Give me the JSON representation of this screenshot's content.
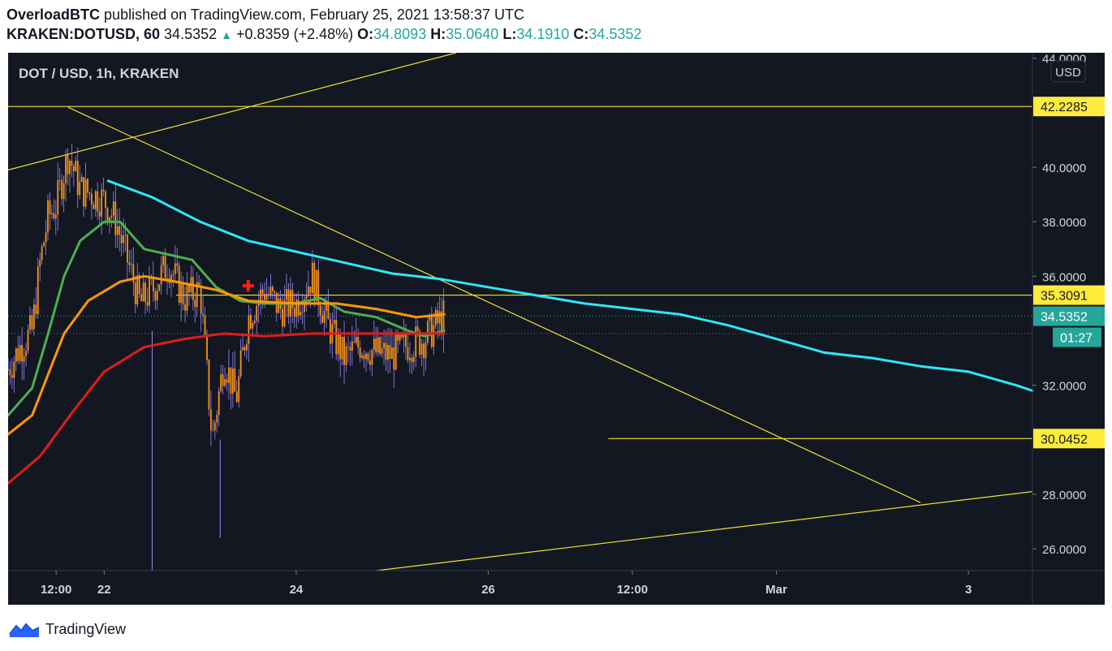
{
  "header": {
    "author": "OverloadBTC",
    "published_text": "published on TradingView.com, February 25, 2021 13:58:37 UTC",
    "symbol": "KRAKEN:DOTUSD, 60",
    "last": "34.5352",
    "change_arrow": "▲",
    "change": "+0.8359 (+2.48%)",
    "o_label": "O:",
    "o": "34.8093",
    "h_label": "H:",
    "h": "35.0640",
    "l_label": "L:",
    "l": "34.1910",
    "c_label": "C:",
    "c": "34.5352"
  },
  "chart_title": "DOT / USD, 1h, KRAKEN",
  "currency_badge": "USD",
  "footer": {
    "brand": "TradingView"
  },
  "colors": {
    "background": "#131722",
    "candle": "#f7931a",
    "wick": "#9b87f5",
    "trendline": "#f0e130",
    "ema_fast": "#4caf50",
    "ema_mid": "#ff9800",
    "ema_slow": "#e01c1c",
    "ema_long": "#2ee8f5",
    "price_badge": "#26a69a",
    "level_badge": "#ffeb3b",
    "axis_text": "#d1d4dc"
  },
  "chart_data": {
    "type": "line",
    "title": "DOT / USD, 1h, KRAKEN",
    "ylim": [
      25.2,
      44.2
    ],
    "x_range": [
      "2021-02-21T00:00",
      "2021-03-03T16:00"
    ],
    "y_ticks": [
      "44.0000",
      "40.0000",
      "38.0000",
      "36.0000",
      "32.0000",
      "28.0000",
      "26.0000"
    ],
    "y_tick_values": [
      44,
      40,
      38,
      36,
      32,
      28,
      26
    ],
    "x_ticks": [
      {
        "label": "12:00",
        "t": "2021-02-21T12:00"
      },
      {
        "label": "22",
        "t": "2021-02-22T00:00"
      },
      {
        "label": "24",
        "t": "2021-02-24T00:00"
      },
      {
        "label": "26",
        "t": "2021-02-26T00:00"
      },
      {
        "label": "12:00",
        "t": "2021-02-27T12:00"
      },
      {
        "label": "Mar",
        "t": "2021-03-01T00:00"
      },
      {
        "label": "3",
        "t": "2021-03-03T00:00"
      }
    ],
    "price_levels": [
      {
        "label": "42.2285",
        "value": 42.2285
      },
      {
        "label": "35.3091",
        "value": 35.3091
      },
      {
        "label": "30.0452",
        "value": 30.0452
      }
    ],
    "current_price": {
      "label": "34.5352",
      "value": 34.5352,
      "countdown": "01:27"
    },
    "close_series": [
      {
        "t": "2021-02-21T00:00",
        "close": 32.6
      },
      {
        "t": "2021-02-21T03:00",
        "close": 33.4
      },
      {
        "t": "2021-02-21T06:00",
        "close": 34.0
      },
      {
        "t": "2021-02-21T08:00",
        "close": 36.5
      },
      {
        "t": "2021-02-21T10:00",
        "close": 38.2
      },
      {
        "t": "2021-02-21T12:00",
        "close": 38.6
      },
      {
        "t": "2021-02-21T15:00",
        "close": 40.5
      },
      {
        "t": "2021-02-21T18:00",
        "close": 39.2
      },
      {
        "t": "2021-02-21T21:00",
        "close": 39.0
      },
      {
        "t": "2021-02-22T00:00",
        "close": 38.8
      },
      {
        "t": "2021-02-22T03:00",
        "close": 38.0
      },
      {
        "t": "2021-02-22T06:00",
        "close": 36.5
      },
      {
        "t": "2021-02-22T09:00",
        "close": 35.0
      },
      {
        "t": "2021-02-22T12:00",
        "close": 35.5
      },
      {
        "t": "2021-02-22T16:00",
        "close": 36.5
      },
      {
        "t": "2021-02-22T20:00",
        "close": 35.2
      },
      {
        "t": "2021-02-23T00:00",
        "close": 35.5
      },
      {
        "t": "2021-02-23T03:00",
        "close": 30.0
      },
      {
        "t": "2021-02-23T06:00",
        "close": 33.0
      },
      {
        "t": "2021-02-23T09:00",
        "close": 31.5
      },
      {
        "t": "2021-02-23T12:00",
        "close": 34.5
      },
      {
        "t": "2021-02-23T16:00",
        "close": 35.5
      },
      {
        "t": "2021-02-23T20:00",
        "close": 34.8
      },
      {
        "t": "2021-02-24T00:00",
        "close": 35.0
      },
      {
        "t": "2021-02-24T04:00",
        "close": 36.0
      },
      {
        "t": "2021-02-24T08:00",
        "close": 34.2
      },
      {
        "t": "2021-02-24T12:00",
        "close": 33.0
      },
      {
        "t": "2021-02-24T16:00",
        "close": 33.5
      },
      {
        "t": "2021-02-24T20:00",
        "close": 33.2
      },
      {
        "t": "2021-02-25T00:00",
        "close": 33.1
      },
      {
        "t": "2021-02-25T04:00",
        "close": 33.5
      },
      {
        "t": "2021-02-25T08:00",
        "close": 33.7
      },
      {
        "t": "2021-02-25T13:00",
        "close": 34.5352
      }
    ],
    "series": [
      {
        "name": "EMA long",
        "color": "#2ee8f5",
        "points": [
          {
            "t": "2021-02-22T01:00",
            "y": 39.5
          },
          {
            "t": "2021-02-22T12:00",
            "y": 38.9
          },
          {
            "t": "2021-02-23T00:00",
            "y": 38.0
          },
          {
            "t": "2021-02-23T12:00",
            "y": 37.3
          },
          {
            "t": "2021-02-24T00:00",
            "y": 36.9
          },
          {
            "t": "2021-02-24T12:00",
            "y": 36.5
          },
          {
            "t": "2021-02-25T00:00",
            "y": 36.1
          },
          {
            "t": "2021-02-25T12:00",
            "y": 35.9
          },
          {
            "t": "2021-02-26T00:00",
            "y": 35.6
          },
          {
            "t": "2021-02-26T12:00",
            "y": 35.3
          },
          {
            "t": "2021-02-27T00:00",
            "y": 35.0
          },
          {
            "t": "2021-02-27T12:00",
            "y": 34.8
          },
          {
            "t": "2021-02-28T00:00",
            "y": 34.6
          },
          {
            "t": "2021-02-28T12:00",
            "y": 34.2
          },
          {
            "t": "2021-03-01T00:00",
            "y": 33.7
          },
          {
            "t": "2021-03-01T12:00",
            "y": 33.2
          },
          {
            "t": "2021-03-02T00:00",
            "y": 33.0
          },
          {
            "t": "2021-03-02T12:00",
            "y": 32.7
          },
          {
            "t": "2021-03-03T00:00",
            "y": 32.5
          },
          {
            "t": "2021-03-03T12:00",
            "y": 32.0
          },
          {
            "t": "2021-03-03T16:00",
            "y": 31.8
          }
        ]
      },
      {
        "name": "EMA fast",
        "color": "#4caf50",
        "points": [
          {
            "t": "2021-02-21T00:00",
            "y": 30.9
          },
          {
            "t": "2021-02-21T06:00",
            "y": 31.9
          },
          {
            "t": "2021-02-21T10:00",
            "y": 33.9
          },
          {
            "t": "2021-02-21T14:00",
            "y": 36.0
          },
          {
            "t": "2021-02-21T18:00",
            "y": 37.3
          },
          {
            "t": "2021-02-22T00:00",
            "y": 38.0
          },
          {
            "t": "2021-02-22T04:00",
            "y": 38.0
          },
          {
            "t": "2021-02-22T10:00",
            "y": 37.0
          },
          {
            "t": "2021-02-22T16:00",
            "y": 36.8
          },
          {
            "t": "2021-02-22T22:00",
            "y": 36.6
          },
          {
            "t": "2021-02-23T04:00",
            "y": 35.6
          },
          {
            "t": "2021-02-23T10:00",
            "y": 35.1
          },
          {
            "t": "2021-02-23T16:00",
            "y": 35.0
          },
          {
            "t": "2021-02-24T00:00",
            "y": 35.0
          },
          {
            "t": "2021-02-24T06:00",
            "y": 35.2
          },
          {
            "t": "2021-02-24T12:00",
            "y": 34.7
          },
          {
            "t": "2021-02-24T20:00",
            "y": 34.5
          },
          {
            "t": "2021-02-25T04:00",
            "y": 34.0
          },
          {
            "t": "2021-02-25T08:00",
            "y": 33.8
          },
          {
            "t": "2021-02-25T13:00",
            "y": 34.0
          }
        ]
      },
      {
        "name": "EMA mid",
        "color": "#ff9800",
        "points": [
          {
            "t": "2021-02-21T00:00",
            "y": 30.2
          },
          {
            "t": "2021-02-21T06:00",
            "y": 30.9
          },
          {
            "t": "2021-02-21T10:00",
            "y": 32.4
          },
          {
            "t": "2021-02-21T14:00",
            "y": 33.9
          },
          {
            "t": "2021-02-21T20:00",
            "y": 35.1
          },
          {
            "t": "2021-02-22T04:00",
            "y": 35.8
          },
          {
            "t": "2021-02-22T10:00",
            "y": 36.0
          },
          {
            "t": "2021-02-22T18:00",
            "y": 35.8
          },
          {
            "t": "2021-02-23T04:00",
            "y": 35.5
          },
          {
            "t": "2021-02-23T12:00",
            "y": 35.1
          },
          {
            "t": "2021-02-24T00:00",
            "y": 35.0
          },
          {
            "t": "2021-02-24T10:00",
            "y": 35.0
          },
          {
            "t": "2021-02-24T20:00",
            "y": 34.8
          },
          {
            "t": "2021-02-25T06:00",
            "y": 34.5
          },
          {
            "t": "2021-02-25T13:00",
            "y": 34.6
          }
        ]
      },
      {
        "name": "EMA slow",
        "color": "#e01c1c",
        "points": [
          {
            "t": "2021-02-21T00:00",
            "y": 28.4
          },
          {
            "t": "2021-02-21T08:00",
            "y": 29.4
          },
          {
            "t": "2021-02-21T16:00",
            "y": 31.0
          },
          {
            "t": "2021-02-22T00:00",
            "y": 32.5
          },
          {
            "t": "2021-02-22T10:00",
            "y": 33.4
          },
          {
            "t": "2021-02-22T20:00",
            "y": 33.7
          },
          {
            "t": "2021-02-23T06:00",
            "y": 33.9
          },
          {
            "t": "2021-02-23T16:00",
            "y": 33.8
          },
          {
            "t": "2021-02-24T04:00",
            "y": 33.9
          },
          {
            "t": "2021-02-24T16:00",
            "y": 33.9
          },
          {
            "t": "2021-02-25T06:00",
            "y": 33.9
          },
          {
            "t": "2021-02-25T13:00",
            "y": 33.9
          }
        ]
      }
    ],
    "trendlines": [
      {
        "name": "upper rising",
        "from": {
          "t": "2021-02-21T00:00",
          "y": 39.9
        },
        "to": {
          "t": "2021-02-25T16:00",
          "y": 44.2
        }
      },
      {
        "name": "descending",
        "from": {
          "t": "2021-02-21T15:00",
          "y": 42.2
        },
        "to": {
          "t": "2021-03-02T12:00",
          "y": 27.7
        }
      },
      {
        "name": "lower rising",
        "from": {
          "t": "2021-02-24T20:00",
          "y": 25.2
        },
        "to": {
          "t": "2021-03-03T16:00",
          "y": 28.1
        }
      },
      {
        "name": "level 42.2285",
        "from": {
          "t": "2021-02-21T00:00",
          "y": 42.2285
        },
        "to": {
          "t": "2021-03-03T16:00",
          "y": 42.2285
        }
      },
      {
        "name": "level 35.3091",
        "from": {
          "t": "2021-02-22T18:00",
          "y": 35.3091
        },
        "to": {
          "t": "2021-03-03T16:00",
          "y": 35.3091
        }
      },
      {
        "name": "level 30.0452",
        "from": {
          "t": "2021-02-27T06:00",
          "y": 30.0452
        },
        "to": {
          "t": "2021-03-03T16:00",
          "y": 30.0452
        }
      }
    ],
    "marker": {
      "name": "crossover-marker",
      "t": "2021-02-23T12:00",
      "y": 35.65
    },
    "grid": false,
    "legend": "none"
  }
}
